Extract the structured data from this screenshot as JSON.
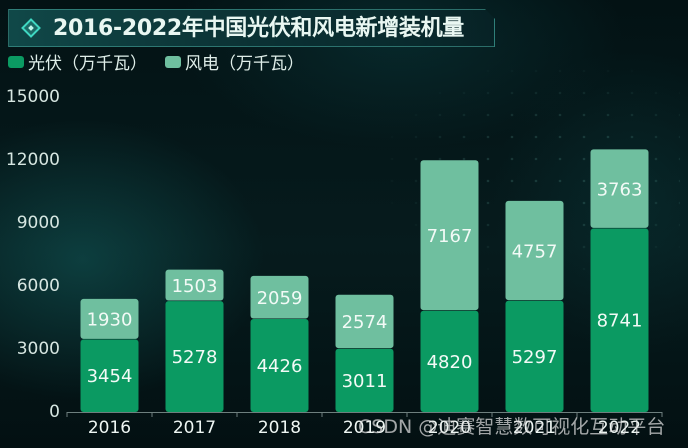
{
  "watermark": "CSDN @迪赛智慧数可视化互动平台",
  "chart_data": {
    "type": "bar",
    "stacked": true,
    "title": "2016-2022年中国光伏和风电新增装机量",
    "categories": [
      "2016",
      "2017",
      "2018",
      "2019",
      "2020",
      "2021",
      "2022"
    ],
    "series": [
      {
        "name": "光伏（万千瓦）",
        "color": "#0b9a62",
        "values": [
          3454,
          5278,
          4426,
          3011,
          4820,
          5297,
          8741
        ]
      },
      {
        "name": "风电（万千瓦）",
        "color": "#6fbf9f",
        "values": [
          1930,
          1503,
          2059,
          2574,
          7167,
          4757,
          3763
        ]
      }
    ],
    "ylim": [
      0,
      15000
    ],
    "yticks": [
      0,
      3000,
      6000,
      9000,
      12000,
      15000
    ],
    "xlabel": "",
    "ylabel": "",
    "grid": false,
    "legend": "top-left",
    "background": "#04161a",
    "accent": "#3fd8c2"
  }
}
